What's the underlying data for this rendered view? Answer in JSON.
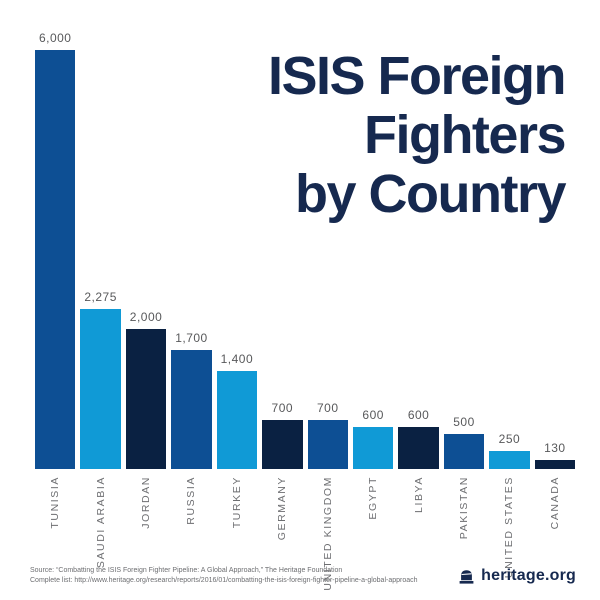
{
  "header": {
    "title_lines": [
      "ISIS Foreign",
      "Fighters",
      "by Country"
    ]
  },
  "chart_data": {
    "type": "bar",
    "title": "ISIS Foreign Fighters by Country",
    "categories": [
      "TUNISIA",
      "SAUDI ARABIA",
      "JORDAN",
      "RUSSIA",
      "TURKEY",
      "GERMANY",
      "UNITED KINGDOM",
      "EGYPT",
      "LIBYA",
      "PAKISTAN",
      "UNITED STATES",
      "CANADA"
    ],
    "values": [
      6000,
      2275,
      2000,
      1700,
      1400,
      700,
      700,
      600,
      600,
      500,
      250,
      130
    ],
    "value_labels": [
      "6,000",
      "2,275",
      "2,000",
      "1,700",
      "1,400",
      "700",
      "700",
      "600",
      "600",
      "500",
      "250",
      "130"
    ],
    "bar_colors": [
      "#0d4f94",
      "#109ad6",
      "#0a2142",
      "#0d4f94",
      "#109ad6",
      "#0a2142",
      "#0d4f94",
      "#109ad6",
      "#0a2142",
      "#0d4f94",
      "#109ad6",
      "#0a2142"
    ],
    "xlabel": "",
    "ylabel": "",
    "ylim": [
      0,
      6000
    ],
    "grid": false,
    "legend": null,
    "value_label_position": "above-bar",
    "category_label_rotation": -90
  },
  "footer": {
    "source_line1": "Source: “Combatting the ISIS Foreign Fighter Pipeline: A Global Approach,” The Heritage Foundation",
    "source_line2": "Complete list: http://www.heritage.org/research/reports/2016/01/combatting-the-isis-foreign-fighter-pipeline-a-global-approach",
    "logo_text": "heritage.org",
    "logo_icon": "liberty-bell-icon"
  },
  "colors": {
    "navy_dark": "#0a2142",
    "blue_medium": "#0d4f94",
    "blue_light": "#109ad6",
    "title_navy": "#16294f",
    "value_label_gray": "#58595b",
    "axis_label_gray": "#6d6e71"
  }
}
